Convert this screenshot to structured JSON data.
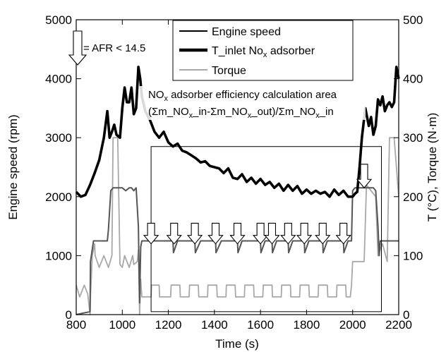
{
  "chart_data": {
    "type": "line",
    "xlabel": "Time (s)",
    "ylabel_left": "Engine speed (rpm)",
    "ylabel_right": "T (°C), Torque (N·m)",
    "xlim": [
      800,
      2200
    ],
    "ylim_left": [
      0,
      5000
    ],
    "ylim_right": [
      0,
      500
    ],
    "x_ticks": [
      "800",
      "1000",
      "1200",
      "1400",
      "1600",
      "1800",
      "2000",
      "2200"
    ],
    "y_ticks_left": [
      "0",
      "1000",
      "2000",
      "3000",
      "4000",
      "5000"
    ],
    "y_ticks_right": [
      "0",
      "100",
      "200",
      "300",
      "400",
      "500"
    ],
    "grid": false,
    "legend_position": "top-center",
    "legend": {
      "engine_speed": "Engine speed",
      "t_inlet_prefix": "T_inlet No",
      "t_inlet_sub": "x",
      "t_inlet_suffix": " adsorber",
      "torque": "Torque"
    },
    "arrow_legend": "= AFR < 14.5",
    "area_label": {
      "line1_prefix": "NO",
      "line1_sub": "x",
      "line1_suffix": " adsorber efficiency calculation area",
      "line2_a": "(Σm_NO",
      "line2_sub1": "x",
      "line2_b": "_in-Σm_NO",
      "line2_sub2": "x",
      "line2_c": "_out)/Σm_NO",
      "line2_sub3": "x",
      "line2_d": "_in"
    },
    "area_box_x": [
      1125,
      2125
    ],
    "area_box_y_rpm": [
      2850,
      50
    ],
    "afr_arrow_times": [
      1125,
      1225,
      1315,
      1405,
      1500,
      1600,
      1650,
      1720,
      1790,
      1870,
      1960,
      2050
    ],
    "series": [
      {
        "name": "Engine speed",
        "axis": "left",
        "x": [
          800,
          860,
          862,
          875,
          878,
          885,
          900,
          920,
          935,
          940,
          950,
          960,
          975,
          985,
          1000,
          1015,
          1030,
          1040,
          1050,
          1060,
          1070,
          1075,
          1080,
          1085,
          1100,
          1125,
          1150,
          1175,
          1200,
          1220,
          1222,
          1240,
          1260,
          1300,
          1315,
          1317,
          1340,
          1400,
          1405,
          1407,
          1430,
          1500,
          1502,
          1520,
          1560,
          1600,
          1602,
          1620,
          1650,
          1652,
          1670,
          1720,
          1722,
          1740,
          1790,
          1792,
          1810,
          1870,
          1872,
          1890,
          1960,
          1962,
          1980,
          1990,
          1995,
          2000,
          2010,
          2020,
          2030,
          2050,
          2070,
          2080,
          2090,
          2100,
          2110,
          2115,
          2120,
          2125,
          2130,
          2140,
          2150,
          2160,
          2180,
          2200
        ],
        "y": [
          0,
          50,
          900,
          1250,
          1250,
          1250,
          1250,
          1250,
          1250,
          1450,
          2100,
          2150,
          2150,
          2150,
          2150,
          2100,
          2150,
          2150,
          2100,
          2150,
          1500,
          200,
          1150,
          1250,
          1250,
          1250,
          1250,
          1250,
          1250,
          1250,
          1050,
          1250,
          1250,
          1250,
          1250,
          1050,
          1250,
          1250,
          1250,
          1050,
          1250,
          1250,
          1050,
          1250,
          1250,
          1250,
          1050,
          1250,
          1250,
          1050,
          1250,
          1250,
          1050,
          1250,
          1250,
          1050,
          1250,
          1250,
          1050,
          1250,
          1250,
          1050,
          1250,
          1250,
          1250,
          2100,
          2150,
          2150,
          2150,
          2150,
          2150,
          2150,
          2150,
          2100,
          1500,
          1000,
          1250,
          1250,
          1250,
          1250,
          1250,
          1250,
          1250,
          1250
        ]
      },
      {
        "name": "T_inlet Nox adsorber",
        "axis": "right",
        "x": [
          800,
          820,
          840,
          860,
          880,
          900,
          920,
          935,
          945,
          955,
          965,
          975,
          990,
          1000,
          1010,
          1020,
          1030,
          1040,
          1050,
          1060,
          1070,
          1078,
          1085,
          1100,
          1120,
          1140,
          1160,
          1180,
          1200,
          1220,
          1240,
          1260,
          1280,
          1300,
          1320,
          1340,
          1360,
          1380,
          1400,
          1420,
          1440,
          1460,
          1480,
          1500,
          1520,
          1540,
          1560,
          1580,
          1600,
          1620,
          1640,
          1660,
          1680,
          1700,
          1720,
          1740,
          1760,
          1780,
          1800,
          1820,
          1840,
          1860,
          1880,
          1900,
          1920,
          1940,
          1960,
          1980,
          2000,
          2010,
          2020,
          2030,
          2040,
          2055,
          2070,
          2080,
          2090,
          2100,
          2110,
          2120,
          2130,
          2140,
          2150,
          2160,
          2170,
          2180,
          2190,
          2200
        ],
        "y": [
          208,
          200,
          203,
          220,
          240,
          262,
          300,
          345,
          300,
          310,
          322,
          305,
          300,
          350,
          385,
          360,
          360,
          385,
          340,
          350,
          420,
          400,
          370,
          345,
          330,
          310,
          300,
          310,
          292,
          285,
          290,
          278,
          275,
          270,
          265,
          258,
          260,
          252,
          250,
          248,
          240,
          248,
          232,
          230,
          238,
          225,
          232,
          222,
          230,
          220,
          225,
          215,
          222,
          210,
          220,
          210,
          218,
          205,
          212,
          205,
          210,
          205,
          208,
          200,
          212,
          203,
          210,
          200,
          200,
          205,
          208,
          250,
          300,
          350,
          320,
          335,
          305,
          320,
          365,
          355,
          370,
          345,
          355,
          360,
          352,
          360,
          420,
          400
        ]
      },
      {
        "name": "Torque",
        "axis": "right",
        "x": [
          800,
          815,
          835,
          850,
          860,
          862,
          870,
          880,
          882,
          900,
          920,
          940,
          955,
          960,
          980,
          990,
          1000,
          1010,
          1030,
          1045,
          1050,
          1065,
          1070,
          1075,
          1080,
          1085,
          1125,
          1127,
          1160,
          1162,
          1210,
          1212,
          1250,
          1252,
          1290,
          1292,
          1330,
          1332,
          1370,
          1372,
          1410,
          1412,
          1450,
          1452,
          1490,
          1492,
          1530,
          1532,
          1570,
          1572,
          1610,
          1612,
          1650,
          1652,
          1690,
          1692,
          1730,
          1732,
          1770,
          1772,
          1810,
          1812,
          1850,
          1852,
          1890,
          1892,
          1930,
          1932,
          1970,
          1972,
          1990,
          1995,
          2000,
          2040,
          2050,
          2060,
          2080,
          2100,
          2110,
          2130,
          2150,
          2160,
          2180,
          2200
        ],
        "y": [
          50,
          30,
          50,
          35,
          0,
          30,
          100,
          120,
          100,
          80,
          100,
          80,
          100,
          300,
          300,
          85,
          80,
          100,
          80,
          100,
          85,
          90,
          110,
          0,
          60,
          30,
          30,
          50,
          50,
          30,
          30,
          50,
          50,
          30,
          30,
          50,
          50,
          30,
          30,
          50,
          50,
          30,
          30,
          50,
          50,
          30,
          30,
          50,
          50,
          30,
          30,
          50,
          50,
          30,
          30,
          50,
          50,
          30,
          30,
          50,
          50,
          30,
          30,
          50,
          50,
          30,
          30,
          50,
          50,
          30,
          30,
          50,
          90,
          90,
          90,
          220,
          210,
          200,
          100,
          120,
          90,
          300,
          300,
          200
        ]
      }
    ]
  }
}
